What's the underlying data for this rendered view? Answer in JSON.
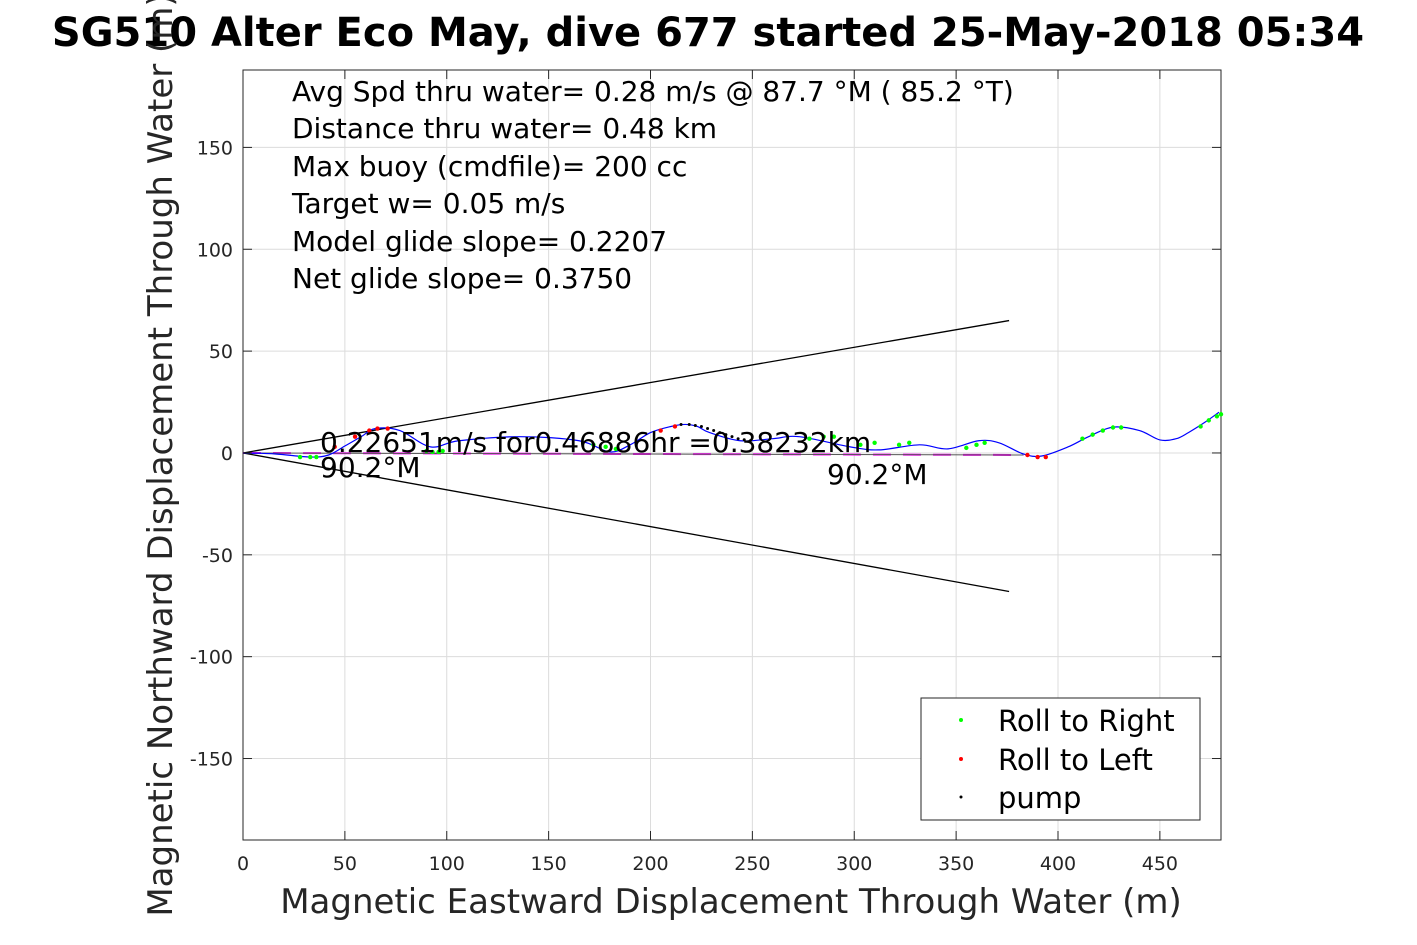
{
  "chart_data": {
    "type": "line",
    "title": "SG510 Alter Eco May, dive 677 started 25-May-2018 05:34",
    "xlabel": "Magnetic Eastward Displacement Through Water (m)",
    "ylabel": "Magnetic Northward Displacement Through Water (m)",
    "xlim": [
      0,
      480
    ],
    "ylim": [
      -190,
      188
    ],
    "xticks": [
      0,
      50,
      100,
      150,
      200,
      250,
      300,
      350,
      400,
      450
    ],
    "yticks": [
      -150,
      -100,
      -50,
      0,
      50,
      100,
      150
    ],
    "grid": true,
    "stats": [
      "Avg Spd thru water=  0.28 m/s @  87.7 °M ( 85.2 °T)",
      "Distance thru water=  0.48 km",
      "Max buoy (cmdfile)= 200 cc",
      "Target w= 0.05 m/s",
      "Model glide slope= 0.2207",
      "Net glide slope= 0.3750"
    ],
    "annotations": {
      "current": "0.22651m/s for0.46886hr =0.38232km",
      "heading_start": "90.2°M",
      "heading_end": "90.2°M"
    },
    "track": {
      "x": [
        0,
        16,
        33,
        42,
        50,
        58,
        65,
        77,
        92,
        106,
        136,
        165,
        180,
        190,
        200,
        210,
        217,
        223,
        229,
        244,
        260,
        273,
        298,
        312,
        332,
        346,
        361,
        371,
        383,
        392,
        405,
        415,
        427,
        440,
        450,
        458,
        464,
        472,
        479
      ],
      "y": [
        0,
        -0.5,
        -2,
        -1,
        3.4,
        8,
        12,
        11,
        3,
        6,
        8,
        6,
        0.5,
        4,
        10,
        13,
        14,
        13,
        10,
        6,
        7,
        8,
        3,
        1.5,
        4,
        2,
        6,
        5,
        -0.5,
        -1.5,
        3,
        8,
        12.7,
        11,
        6.4,
        7,
        10,
        15,
        20
      ]
    },
    "cone_upper": {
      "x": [
        0,
        376
      ],
      "y": [
        0,
        65
      ]
    },
    "cone_lower": {
      "x": [
        0,
        376
      ],
      "y": [
        0,
        -68
      ]
    },
    "current_line": {
      "x": [
        0,
        383
      ],
      "y": [
        0,
        -1
      ]
    },
    "series": [
      {
        "name": "Roll to Right",
        "color": "#00ff00",
        "x": [
          28,
          33,
          36,
          90,
          93,
          96,
          98,
          172,
          178,
          183,
          278,
          285,
          290,
          303,
          310,
          322,
          327,
          355,
          360,
          364,
          412,
          417,
          422,
          427,
          431,
          470,
          474,
          478,
          480
        ],
        "y": [
          -2,
          -2,
          -2,
          1,
          0.5,
          0.5,
          1,
          4,
          3,
          2,
          7,
          8,
          8,
          4,
          5,
          4,
          5,
          2.5,
          4,
          5,
          7,
          9,
          11,
          12.5,
          12.5,
          13,
          16,
          18,
          19
        ]
      },
      {
        "name": "Roll to Left",
        "color": "#ff0000",
        "x": [
          45,
          55,
          62,
          66,
          71,
          205,
          212,
          385,
          390,
          394
        ],
        "y": [
          3,
          8,
          11,
          12,
          12,
          11,
          13,
          -1,
          -2,
          -2
        ]
      },
      {
        "name": "pump",
        "color": "#000000",
        "x": [
          215,
          219,
          222,
          225,
          228,
          231,
          234,
          237,
          240,
          243,
          246,
          249
        ],
        "y": [
          14,
          14,
          13.5,
          13,
          12,
          11,
          10,
          9,
          8,
          7,
          6.5,
          6
        ]
      }
    ]
  }
}
